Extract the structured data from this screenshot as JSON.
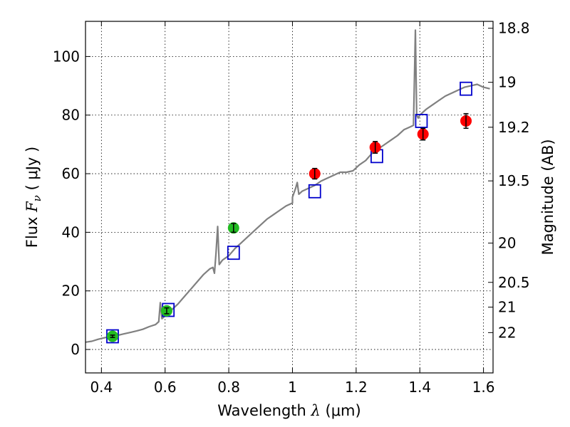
{
  "chart_data": {
    "type": "scatter",
    "xlabel_prefix": "Wavelength ",
    "xlabel_symbol": "λ",
    "xlabel_units": " (μm)",
    "ylabel_prefix": "Flux ",
    "ylabel_symbol_main": "F",
    "ylabel_symbol_sub": "ν",
    "ylabel_units": " ( μJy )",
    "y2label": "Magnitude (AB)",
    "xlim": [
      0.35,
      1.63
    ],
    "ylim": [
      -8,
      112
    ],
    "grid": true,
    "xticks": [
      0.4,
      0.6,
      0.8,
      1.0,
      1.2,
      1.4,
      1.6
    ],
    "xtick_labels": [
      "0.4",
      "0.6",
      "0.8",
      "1",
      "1.2",
      "1.4",
      "1.6"
    ],
    "yticks": [
      0,
      20,
      40,
      60,
      80,
      100
    ],
    "ytick_labels": [
      "0",
      "20",
      "40",
      "60",
      "80",
      "100"
    ],
    "mag_ticks": [
      {
        "mag": 18.8,
        "label": "18.8"
      },
      {
        "mag": 19.0,
        "label": "19"
      },
      {
        "mag": 19.2,
        "label": "19.2"
      },
      {
        "mag": 19.5,
        "label": "19.5"
      },
      {
        "mag": 20.0,
        "label": "20"
      },
      {
        "mag": 20.5,
        "label": "20.5"
      },
      {
        "mag": 21.0,
        "label": "21"
      },
      {
        "mag": 22.0,
        "label": "22"
      }
    ],
    "colors": {
      "spectrum": "#808080",
      "green": "#22bb22",
      "red": "#ff0000",
      "model_box": "#0000cc",
      "error_bar": "#000000"
    },
    "series": [
      {
        "name": "model spectrum",
        "kind": "line",
        "x": [
          0.35,
          0.37,
          0.39,
          0.41,
          0.43,
          0.45,
          0.47,
          0.49,
          0.51,
          0.53,
          0.55,
          0.57,
          0.58,
          0.585,
          0.59,
          0.6,
          0.62,
          0.64,
          0.66,
          0.68,
          0.7,
          0.72,
          0.74,
          0.75,
          0.755,
          0.76,
          0.765,
          0.77,
          0.78,
          0.8,
          0.82,
          0.84,
          0.86,
          0.88,
          0.9,
          0.92,
          0.94,
          0.96,
          0.98,
          1.0,
          1.0,
          1.01,
          1.015,
          1.02,
          1.03,
          1.05,
          1.07,
          1.09,
          1.11,
          1.13,
          1.15,
          1.17,
          1.19,
          1.21,
          1.23,
          1.25,
          1.27,
          1.29,
          1.31,
          1.33,
          1.35,
          1.37,
          1.38,
          1.383,
          1.386,
          1.39,
          1.395,
          1.4,
          1.42,
          1.44,
          1.46,
          1.48,
          1.5,
          1.52,
          1.54,
          1.56,
          1.58,
          1.6,
          1.62
        ],
        "y": [
          2.5,
          2.8,
          3.5,
          4.0,
          4.5,
          4.8,
          5.3,
          5.8,
          6.3,
          6.9,
          7.8,
          8.5,
          9.5,
          16.0,
          10.5,
          11.5,
          13.5,
          15.5,
          18.0,
          20.5,
          23.0,
          25.5,
          27.5,
          28.0,
          26.0,
          33.0,
          42.0,
          29.0,
          30.5,
          32.0,
          34.5,
          36.5,
          38.5,
          40.5,
          42.5,
          44.5,
          46.0,
          47.5,
          49.0,
          50.0,
          52.0,
          55.0,
          57.0,
          53.0,
          54.0,
          55.0,
          56.0,
          57.5,
          58.5,
          59.5,
          60.5,
          60.5,
          61.0,
          63.0,
          64.5,
          67.0,
          68.5,
          70.0,
          71.5,
          73.0,
          75.0,
          76.0,
          76.5,
          92.0,
          109.0,
          80.0,
          79.0,
          80.0,
          82.0,
          83.5,
          85.0,
          86.5,
          87.5,
          88.5,
          89.5,
          90.0,
          90.5,
          89.5,
          89.0
        ]
      },
      {
        "name": "model photometry",
        "kind": "open-square",
        "x": [
          0.435,
          0.61,
          0.815,
          1.07,
          1.265,
          1.405,
          1.545
        ],
        "y": [
          4.5,
          13.5,
          33.0,
          54.0,
          66.0,
          78.0,
          89.0
        ]
      },
      {
        "name": "optical photometry",
        "kind": "filled-circle",
        "color": "green",
        "x": [
          0.435,
          0.605,
          0.815
        ],
        "y": [
          4.5,
          13.2,
          41.5
        ],
        "err": [
          0.4,
          1.0,
          1.5
        ]
      },
      {
        "name": "near-IR photometry",
        "kind": "filled-circle",
        "color": "red",
        "x": [
          1.07,
          1.26,
          1.41,
          1.545
        ],
        "y": [
          60.0,
          69.0,
          73.5,
          78.0
        ],
        "err": [
          1.8,
          2.0,
          2.0,
          2.5
        ]
      }
    ]
  }
}
